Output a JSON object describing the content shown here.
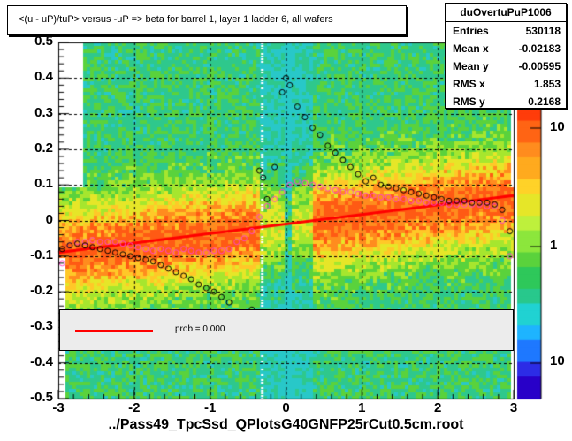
{
  "title": "<(u - uP)/tuP> versus  -uP => beta for barrel 1, layer 1 ladder 6, all wafers",
  "stats": {
    "name": "duOvertuPuP1006",
    "rows": [
      {
        "k": "Entries",
        "v": "530118"
      },
      {
        "k": "Mean x",
        "v": "-0.02183"
      },
      {
        "k": "Mean y",
        "v": "-0.00595"
      },
      {
        "k": "RMS x",
        "v": "1.853"
      },
      {
        "k": "RMS y",
        "v": "0.2168"
      }
    ]
  },
  "footer": "../Pass49_TpcSsd_QPlotsG40GNFP25rCut0.5cm.root",
  "legend_text": "prob = 0.000",
  "chart_data": {
    "type": "heatmap",
    "xlim": [
      -3,
      3
    ],
    "ylim": [
      -0.5,
      0.5
    ],
    "x_ticks": [
      "-3",
      "-2",
      "-1",
      "0",
      "1",
      "2",
      "3"
    ],
    "y_ticks": [
      "-0.5",
      "-0.4",
      "-0.3",
      "-0.2",
      "-0.1",
      "0",
      "0.1",
      "0.2",
      "0.3",
      "0.4",
      "0.5"
    ],
    "z_ticks": [
      "10",
      "1",
      "10"
    ],
    "grid": true,
    "fit_line": {
      "x": [
        -3,
        3
      ],
      "y": [
        -0.09,
        0.07
      ],
      "color": "#ff0000"
    },
    "profile_black": {
      "x": [
        -2.95,
        -2.85,
        -2.75,
        -2.65,
        -2.55,
        -2.45,
        -2.35,
        -2.25,
        -2.15,
        -2.05,
        -1.95,
        -1.85,
        -1.75,
        -1.65,
        -1.55,
        -1.45,
        -1.35,
        -1.25,
        -1.15,
        -1.05,
        -0.95,
        -0.85,
        -0.75,
        -0.45,
        -0.35,
        -0.3,
        -0.25,
        -0.15,
        -0.05,
        0.0,
        0.05,
        0.15,
        0.25,
        0.35,
        0.45,
        0.55,
        0.65,
        0.75,
        0.85,
        0.95,
        1.05,
        1.15,
        1.25,
        1.35,
        1.45,
        1.55,
        1.65,
        1.75,
        1.85,
        1.95,
        2.05,
        2.15,
        2.25,
        2.35,
        2.45,
        2.55,
        2.65,
        2.75,
        2.85,
        2.95
      ],
      "y": [
        -0.08,
        -0.07,
        -0.065,
        -0.07,
        -0.075,
        -0.08,
        -0.085,
        -0.09,
        -0.095,
        -0.1,
        -0.105,
        -0.11,
        -0.115,
        -0.125,
        -0.135,
        -0.145,
        -0.155,
        -0.165,
        -0.18,
        -0.19,
        -0.2,
        -0.215,
        -0.23,
        -0.25,
        0.14,
        0.12,
        0.06,
        0.15,
        0.36,
        0.4,
        0.38,
        0.32,
        0.29,
        0.26,
        0.24,
        0.21,
        0.19,
        0.17,
        0.15,
        0.13,
        0.11,
        0.12,
        0.1,
        0.095,
        0.09,
        0.085,
        0.08,
        0.075,
        0.07,
        0.065,
        0.06,
        0.055,
        0.055,
        0.055,
        0.05,
        0.05,
        0.05,
        0.045,
        0.03,
        -0.03
      ]
    },
    "profile_magenta": {
      "x": [
        -2.95,
        -2.85,
        -2.75,
        -2.65,
        -2.55,
        -2.45,
        -2.35,
        -2.25,
        -2.15,
        -2.05,
        -1.95,
        -1.85,
        -1.75,
        -1.65,
        -1.55,
        -1.45,
        -1.35,
        -1.25,
        -1.15,
        -1.05,
        -0.95,
        -0.85,
        -0.75,
        -0.65,
        -0.55,
        -0.45,
        -0.35,
        -0.25,
        -0.15,
        -0.05,
        0.05,
        0.15,
        0.25,
        0.35,
        0.45,
        0.55,
        0.65,
        0.75,
        0.85,
        0.95,
        1.05,
        1.15,
        1.25,
        1.35,
        1.45,
        1.55,
        1.65,
        1.75,
        1.85,
        1.95,
        2.05,
        2.15,
        2.25,
        2.35,
        2.45,
        2.55,
        2.65,
        2.75,
        2.85,
        2.95
      ],
      "y": [
        -0.12,
        -0.07,
        -0.06,
        -0.06,
        -0.055,
        -0.06,
        -0.06,
        -0.06,
        -0.065,
        -0.07,
        -0.075,
        -0.08,
        -0.085,
        -0.08,
        -0.085,
        -0.09,
        -0.08,
        -0.085,
        -0.09,
        -0.09,
        -0.085,
        -0.085,
        -0.08,
        -0.06,
        -0.05,
        -0.03,
        0.01,
        0.04,
        0.06,
        0.08,
        0.1,
        0.11,
        0.105,
        0.1,
        0.095,
        0.09,
        0.085,
        0.08,
        0.08,
        0.075,
        0.07,
        0.07,
        0.065,
        0.065,
        0.06,
        0.06,
        0.055,
        0.055,
        0.05,
        0.05,
        0.05,
        0.045,
        0.045,
        0.045,
        0.045,
        0.045,
        0.04,
        0.04,
        0.0,
        -0.1
      ]
    }
  }
}
